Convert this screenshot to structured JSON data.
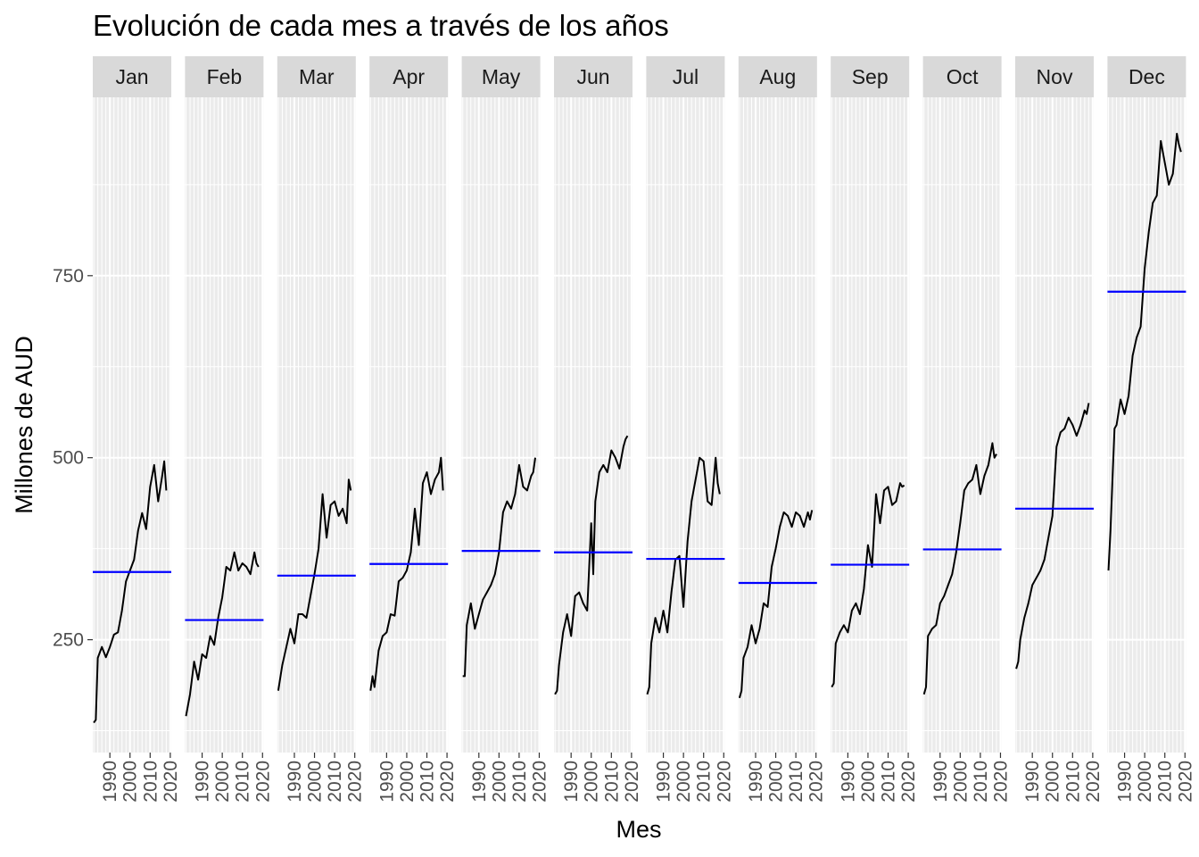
{
  "chart_data": {
    "type": "line",
    "title": "Evolución de cada mes a través de los años",
    "xlabel": "Mes",
    "ylabel": "Millones de AUD",
    "ylim": [
      95,
      995
    ],
    "y_ticks": [
      250,
      500,
      750
    ],
    "x_ticks": [
      1990,
      2000,
      2010,
      2020
    ],
    "xlim": [
      1981.5,
      2020.5
    ],
    "grid": "on",
    "mean_line_color": "#0000ff",
    "line_color": "#000000",
    "panels": [
      {
        "label": "Jan",
        "mean": 343,
        "x": [
          1982,
          1983,
          1984,
          1986,
          1988,
          1990,
          1992,
          1994,
          1996,
          1998,
          2000,
          2002,
          2004,
          2006,
          2008,
          2010,
          2012,
          2014,
          2016,
          2017,
          2018
        ],
        "values": [
          136,
          140,
          225,
          240,
          226,
          240,
          257,
          260,
          290,
          330,
          345,
          360,
          400,
          424,
          402,
          460,
          490,
          440,
          475,
          495,
          455
        ]
      },
      {
        "label": "Feb",
        "mean": 277,
        "x": [
          1982,
          1984,
          1986,
          1988,
          1990,
          1992,
          1994,
          1996,
          1998,
          2000,
          2002,
          2004,
          2006,
          2008,
          2010,
          2012,
          2014,
          2016,
          2017,
          2018
        ],
        "values": [
          145,
          175,
          220,
          195,
          230,
          225,
          255,
          243,
          280,
          308,
          350,
          345,
          370,
          345,
          355,
          350,
          340,
          370,
          355,
          350
        ]
      },
      {
        "label": "Mar",
        "mean": 338,
        "x": [
          1982,
          1984,
          1986,
          1988,
          1990,
          1992,
          1994,
          1996,
          1998,
          2000,
          2002,
          2004,
          2006,
          2008,
          2010,
          2012,
          2014,
          2016,
          2017,
          2018
        ],
        "values": [
          180,
          215,
          240,
          265,
          245,
          285,
          285,
          280,
          310,
          340,
          375,
          450,
          390,
          435,
          440,
          420,
          430,
          410,
          470,
          455
        ]
      },
      {
        "label": "Apr",
        "mean": 354,
        "x": [
          1982,
          1983,
          1984,
          1986,
          1988,
          1990,
          1992,
          1994,
          1996,
          1998,
          2000,
          2002,
          2004,
          2006,
          2008,
          2010,
          2012,
          2014,
          2016,
          2017,
          2018
        ],
        "values": [
          180,
          200,
          185,
          235,
          255,
          260,
          285,
          283,
          330,
          335,
          345,
          370,
          430,
          380,
          465,
          480,
          450,
          470,
          480,
          500,
          455
        ]
      },
      {
        "label": "May",
        "mean": 372,
        "x": [
          1982,
          1983,
          1984,
          1986,
          1988,
          1990,
          1992,
          1994,
          1996,
          1998,
          2000,
          2002,
          2004,
          2006,
          2008,
          2010,
          2012,
          2014,
          2016,
          2017,
          2018
        ],
        "values": [
          200,
          200,
          270,
          300,
          265,
          285,
          305,
          315,
          325,
          340,
          370,
          425,
          440,
          430,
          450,
          490,
          460,
          455,
          475,
          480,
          500
        ]
      },
      {
        "label": "Jun",
        "mean": 370,
        "x": [
          1982,
          1983,
          1984,
          1986,
          1988,
          1990,
          1992,
          1994,
          1996,
          1998,
          2000,
          2001,
          2002,
          2004,
          2006,
          2008,
          2010,
          2012,
          2014,
          2016,
          2017,
          2018
        ],
        "values": [
          175,
          180,
          215,
          260,
          285,
          255,
          310,
          315,
          300,
          290,
          410,
          340,
          440,
          480,
          490,
          480,
          510,
          500,
          485,
          515,
          525,
          530
        ]
      },
      {
        "label": "Jul",
        "mean": 361,
        "x": [
          1982,
          1983,
          1984,
          1986,
          1988,
          1990,
          1992,
          1994,
          1996,
          1998,
          2000,
          2002,
          2004,
          2006,
          2008,
          2010,
          2012,
          2014,
          2016,
          2017,
          2018
        ],
        "values": [
          175,
          185,
          245,
          280,
          260,
          290,
          260,
          315,
          360,
          365,
          295,
          385,
          440,
          470,
          500,
          495,
          440,
          435,
          500,
          465,
          450
        ]
      },
      {
        "label": "Aug",
        "mean": 328,
        "x": [
          1982,
          1983,
          1984,
          1986,
          1988,
          1990,
          1992,
          1994,
          1996,
          1998,
          2000,
          2002,
          2004,
          2006,
          2008,
          2010,
          2012,
          2014,
          2016,
          2017,
          2018
        ],
        "values": [
          170,
          180,
          225,
          240,
          270,
          245,
          265,
          300,
          295,
          350,
          375,
          405,
          425,
          420,
          405,
          425,
          420,
          405,
          425,
          415,
          428
        ]
      },
      {
        "label": "Sep",
        "mean": 353,
        "x": [
          1982,
          1983,
          1984,
          1986,
          1988,
          1990,
          1992,
          1994,
          1996,
          1998,
          2000,
          2002,
          2004,
          2006,
          2008,
          2010,
          2012,
          2014,
          2016,
          2017,
          2018
        ],
        "values": [
          185,
          190,
          245,
          260,
          270,
          260,
          290,
          300,
          285,
          320,
          380,
          350,
          450,
          410,
          455,
          460,
          435,
          440,
          465,
          460,
          462
        ]
      },
      {
        "label": "Oct",
        "mean": 374,
        "x": [
          1982,
          1983,
          1984,
          1986,
          1988,
          1990,
          1992,
          1994,
          1996,
          1998,
          2000,
          2002,
          2004,
          2006,
          2008,
          2010,
          2012,
          2014,
          2016,
          2017,
          2018
        ],
        "values": [
          175,
          185,
          255,
          265,
          270,
          300,
          310,
          325,
          340,
          370,
          410,
          455,
          465,
          470,
          490,
          450,
          475,
          490,
          520,
          500,
          505
        ]
      },
      {
        "label": "Nov",
        "mean": 430,
        "x": [
          1982,
          1983,
          1984,
          1986,
          1988,
          1990,
          1992,
          1994,
          1996,
          1998,
          2000,
          2002,
          2004,
          2006,
          2008,
          2010,
          2012,
          2014,
          2016,
          2017,
          2018
        ],
        "values": [
          210,
          220,
          250,
          280,
          300,
          325,
          335,
          345,
          360,
          390,
          420,
          515,
          535,
          540,
          555,
          545,
          530,
          545,
          565,
          560,
          575
        ]
      },
      {
        "label": "Dec",
        "mean": 728,
        "x": [
          1982,
          1983,
          1984,
          1985,
          1986,
          1988,
          1990,
          1992,
          1994,
          1996,
          1998,
          2000,
          2002,
          2004,
          2006,
          2008,
          2010,
          2012,
          2014,
          2016,
          2017,
          2018
        ],
        "values": [
          345,
          400,
          470,
          540,
          545,
          580,
          560,
          585,
          640,
          665,
          680,
          760,
          810,
          850,
          860,
          935,
          905,
          875,
          890,
          945,
          930,
          920
        ]
      }
    ]
  }
}
